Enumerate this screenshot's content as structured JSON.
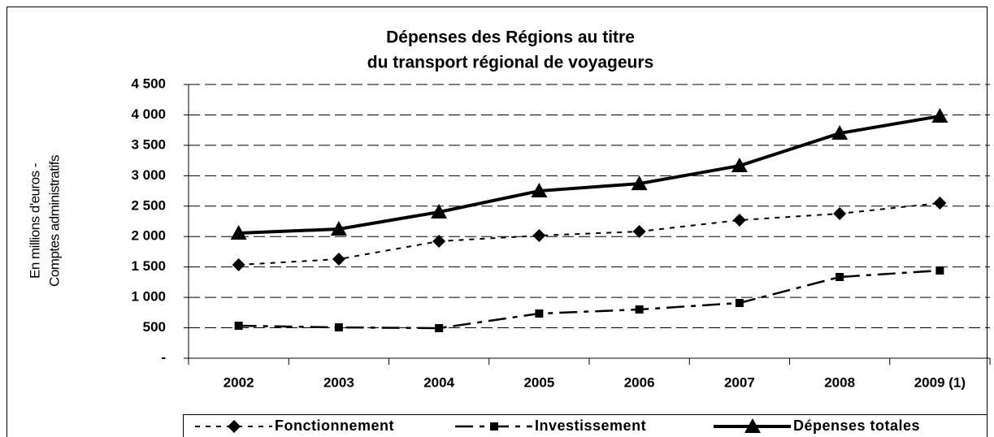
{
  "chart_data": {
    "type": "line",
    "title": [
      "Dépenses des Régions au titre",
      "du transport régional de voyageurs"
    ],
    "y_label": [
      "En millions d'euros -",
      "Comptes administratifs"
    ],
    "categories": [
      "2002",
      "2003",
      "2004",
      "2005",
      "2006",
      "2007",
      "2008",
      "2009 (1)"
    ],
    "series": [
      {
        "name": "Fonctionnement",
        "color": "#000000",
        "dash": "short",
        "marker": "diamond",
        "values": [
          1535,
          1629,
          1923,
          2016,
          2083,
          2270,
          2377,
          2550
        ]
      },
      {
        "name": "Investissement",
        "color": "#000000",
        "dash": "long",
        "marker": "square",
        "values": [
          534,
          507,
          494,
          734,
          801,
          908,
          1335,
          1442
        ]
      },
      {
        "name": "Dépenses totales",
        "color": "#000000",
        "dash": "solid",
        "marker": "triangle",
        "values": [
          2056,
          2123,
          2403,
          2750,
          2870,
          3164,
          3698,
          3979
        ]
      }
    ],
    "ylim": [
      0,
      4500
    ],
    "yticks": [
      {
        "value": 0,
        "label": "-"
      },
      500,
      {
        "value": 1000,
        "label": "1 000"
      },
      {
        "value": 1500,
        "label": "1 500"
      },
      {
        "value": 2000,
        "label": "2 000"
      },
      {
        "value": 2500,
        "label": "2 500"
      },
      {
        "value": 3000,
        "label": "3 000"
      },
      {
        "value": 3500,
        "label": "3 500"
      },
      {
        "value": 4000,
        "label": "4 000"
      },
      {
        "value": 4500,
        "label": "4 500"
      }
    ],
    "grid": true,
    "legend": "bottom"
  }
}
